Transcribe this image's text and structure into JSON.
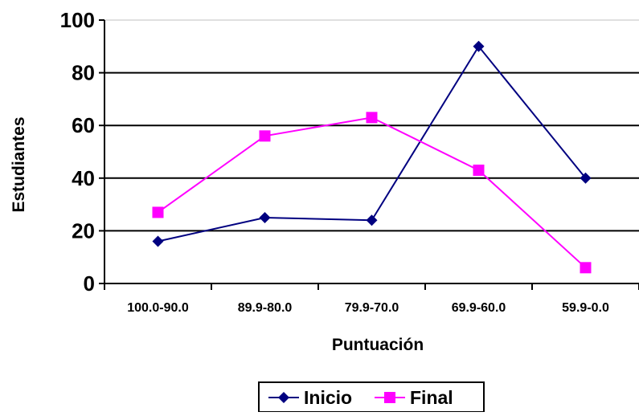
{
  "chart_data": {
    "type": "line",
    "title": "",
    "xlabel": "Puntuación",
    "ylabel": "Estudiantes",
    "categories": [
      "100.0-90.0",
      "89.9-80.0",
      "79.9-70.0",
      "69.9-60.0",
      "59.9-0.0"
    ],
    "ylim": [
      0,
      100
    ],
    "yticks": [
      0,
      20,
      40,
      60,
      80,
      100
    ],
    "grid": true,
    "legend_position": "bottom",
    "series": [
      {
        "name": "Inicio",
        "values": [
          16,
          25,
          24,
          90,
          40
        ],
        "color": "#000080",
        "marker": "diamond"
      },
      {
        "name": "Final",
        "values": [
          27,
          56,
          63,
          43,
          6
        ],
        "color": "#ff00ff",
        "marker": "square"
      }
    ]
  }
}
